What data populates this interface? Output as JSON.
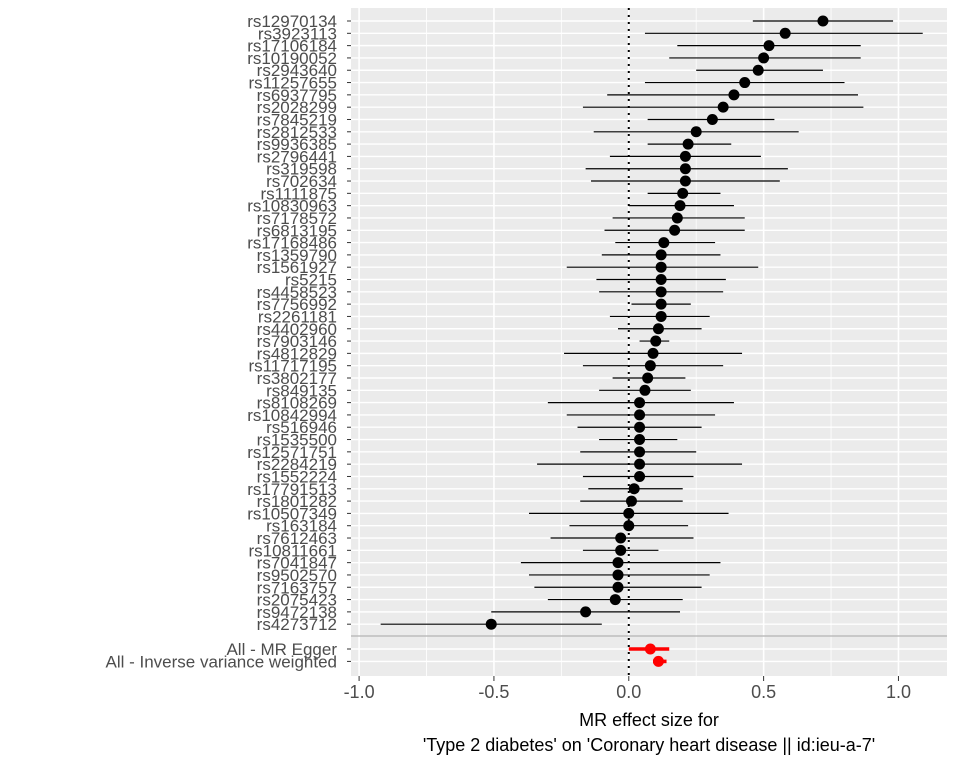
{
  "chart_data": {
    "type": "scatter",
    "subtype": "forest-plot",
    "xlabel_lines": [
      "MR effect size for",
      "'Type 2 diabetes' on 'Coronary heart disease || id:ieu-a-7'"
    ],
    "ylabel": "",
    "xlim": [
      -1.03,
      1.18
    ],
    "x_ticks": [
      -1.0,
      -0.5,
      0.0,
      0.5,
      1.0
    ],
    "x_tick_labels": [
      "-1.0",
      "-0.5",
      "0.0",
      "0.5",
      "1.0"
    ],
    "reference_line_x": 0,
    "grid": true,
    "legend": "none",
    "colors": {
      "panel_background": "#ebebeb",
      "grid": "#ffffff",
      "snp_point": "#000000",
      "summary_point": "#ff0000",
      "separator": "#bdbdbd"
    },
    "snps": [
      {
        "name": "rs12970134",
        "b": 0.72,
        "lo": 0.46,
        "hi": 0.98
      },
      {
        "name": "rs3923113",
        "b": 0.58,
        "lo": 0.06,
        "hi": 1.09
      },
      {
        "name": "rs17106184",
        "b": 0.52,
        "lo": 0.18,
        "hi": 0.86
      },
      {
        "name": "rs10190052",
        "b": 0.5,
        "lo": 0.15,
        "hi": 0.86
      },
      {
        "name": "rs2943640",
        "b": 0.48,
        "lo": 0.25,
        "hi": 0.72
      },
      {
        "name": "rs11257655",
        "b": 0.43,
        "lo": 0.06,
        "hi": 0.8
      },
      {
        "name": "rs6937795",
        "b": 0.39,
        "lo": -0.08,
        "hi": 0.85
      },
      {
        "name": "rs2028299",
        "b": 0.35,
        "lo": -0.17,
        "hi": 0.87
      },
      {
        "name": "rs7845219",
        "b": 0.31,
        "lo": 0.07,
        "hi": 0.54
      },
      {
        "name": "rs2812533",
        "b": 0.25,
        "lo": -0.13,
        "hi": 0.63
      },
      {
        "name": "rs9936385",
        "b": 0.22,
        "lo": 0.07,
        "hi": 0.38
      },
      {
        "name": "rs2796441",
        "b": 0.21,
        "lo": -0.07,
        "hi": 0.49
      },
      {
        "name": "rs319598",
        "b": 0.21,
        "lo": -0.16,
        "hi": 0.59
      },
      {
        "name": "rs702634",
        "b": 0.21,
        "lo": -0.14,
        "hi": 0.56
      },
      {
        "name": "rs1111875",
        "b": 0.2,
        "lo": 0.07,
        "hi": 0.34
      },
      {
        "name": "rs10830963",
        "b": 0.19,
        "lo": 0.0,
        "hi": 0.39
      },
      {
        "name": "rs7178572",
        "b": 0.18,
        "lo": -0.06,
        "hi": 0.43
      },
      {
        "name": "rs6813195",
        "b": 0.17,
        "lo": -0.09,
        "hi": 0.43
      },
      {
        "name": "rs17168486",
        "b": 0.13,
        "lo": -0.05,
        "hi": 0.32
      },
      {
        "name": "rs1359790",
        "b": 0.12,
        "lo": -0.1,
        "hi": 0.34
      },
      {
        "name": "rs1561927",
        "b": 0.12,
        "lo": -0.23,
        "hi": 0.48
      },
      {
        "name": "rs5215",
        "b": 0.12,
        "lo": -0.12,
        "hi": 0.36
      },
      {
        "name": "rs4458523",
        "b": 0.12,
        "lo": -0.11,
        "hi": 0.35
      },
      {
        "name": "rs7756992",
        "b": 0.12,
        "lo": 0.01,
        "hi": 0.23
      },
      {
        "name": "rs2261181",
        "b": 0.12,
        "lo": -0.07,
        "hi": 0.3
      },
      {
        "name": "rs4402960",
        "b": 0.11,
        "lo": -0.04,
        "hi": 0.27
      },
      {
        "name": "rs7903146",
        "b": 0.1,
        "lo": 0.04,
        "hi": 0.15
      },
      {
        "name": "rs4812829",
        "b": 0.09,
        "lo": -0.24,
        "hi": 0.42
      },
      {
        "name": "rs11717195",
        "b": 0.08,
        "lo": -0.17,
        "hi": 0.35
      },
      {
        "name": "rs3802177",
        "b": 0.07,
        "lo": -0.06,
        "hi": 0.21
      },
      {
        "name": "rs849135",
        "b": 0.06,
        "lo": -0.11,
        "hi": 0.23
      },
      {
        "name": "rs8108269",
        "b": 0.04,
        "lo": -0.3,
        "hi": 0.39
      },
      {
        "name": "rs10842994",
        "b": 0.04,
        "lo": -0.23,
        "hi": 0.32
      },
      {
        "name": "rs516946",
        "b": 0.04,
        "lo": -0.19,
        "hi": 0.27
      },
      {
        "name": "rs1535500",
        "b": 0.04,
        "lo": -0.11,
        "hi": 0.18
      },
      {
        "name": "rs12571751",
        "b": 0.04,
        "lo": -0.18,
        "hi": 0.25
      },
      {
        "name": "rs2284219",
        "b": 0.04,
        "lo": -0.34,
        "hi": 0.42
      },
      {
        "name": "rs1552224",
        "b": 0.04,
        "lo": -0.17,
        "hi": 0.24
      },
      {
        "name": "rs17791513",
        "b": 0.02,
        "lo": -0.15,
        "hi": 0.2
      },
      {
        "name": "rs1801282",
        "b": 0.01,
        "lo": -0.18,
        "hi": 0.2
      },
      {
        "name": "rs10507349",
        "b": 0.0,
        "lo": -0.37,
        "hi": 0.37
      },
      {
        "name": "rs163184",
        "b": 0.0,
        "lo": -0.22,
        "hi": 0.22
      },
      {
        "name": "rs7612463",
        "b": -0.03,
        "lo": -0.29,
        "hi": 0.24
      },
      {
        "name": "rs10811661",
        "b": -0.03,
        "lo": -0.17,
        "hi": 0.11
      },
      {
        "name": "rs7041847",
        "b": -0.04,
        "lo": -0.4,
        "hi": 0.34
      },
      {
        "name": "rs9502570",
        "b": -0.04,
        "lo": -0.37,
        "hi": 0.3
      },
      {
        "name": "rs7163757",
        "b": -0.04,
        "lo": -0.35,
        "hi": 0.27
      },
      {
        "name": "rs2075423",
        "b": -0.05,
        "lo": -0.3,
        "hi": 0.2
      },
      {
        "name": "rs9472138",
        "b": -0.16,
        "lo": -0.51,
        "hi": 0.19
      },
      {
        "name": "rs4273712",
        "b": -0.51,
        "lo": -0.92,
        "hi": -0.1
      }
    ],
    "summary": [
      {
        "name": "All - MR Egger",
        "b": 0.08,
        "lo": 0.0,
        "hi": 0.15
      },
      {
        "name": "All - Inverse variance weighted",
        "b": 0.11,
        "lo": 0.09,
        "hi": 0.14
      }
    ]
  }
}
